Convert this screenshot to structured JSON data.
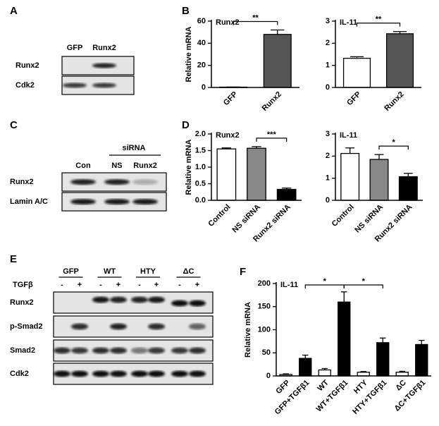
{
  "panel_labels": [
    "A",
    "B",
    "C",
    "D",
    "E",
    "F"
  ],
  "blots": [
    {
      "lanes": [
        "GFP",
        "Runx2"
      ],
      "rows": [
        "Runx2",
        "Cdk2"
      ]
    },
    {
      "header": "siRNA",
      "lanes": [
        "Con",
        "NS",
        "Runx2"
      ],
      "rows": [
        "Runx2",
        "Lamin A/C"
      ]
    },
    {
      "groups": [
        "GFP",
        "WT",
        "HTY",
        "ΔC"
      ],
      "treatment": "TGFβ",
      "signs": [
        "-",
        "+"
      ],
      "rows": [
        "Runx2",
        "p-Smad2",
        "Smad2",
        "Cdk2"
      ]
    }
  ],
  "chart_data": [
    {
      "type": "bar",
      "title": "Runx2",
      "y_label": "Relative mRNA",
      "categories": [
        "GFP",
        "Runx2"
      ],
      "values": [
        0.3,
        48
      ],
      "errors": [
        0.1,
        4
      ],
      "colors": [
        "#ffffff",
        "#555555"
      ],
      "ylim": [
        0,
        60
      ],
      "yticks": [
        0,
        20,
        40,
        60
      ],
      "annotations": [
        {
          "text": "**",
          "between": [
            "GFP",
            "Runx2"
          ]
        }
      ]
    },
    {
      "type": "bar",
      "title": "IL-11",
      "categories": [
        "GFP",
        "Runx2"
      ],
      "values": [
        1.32,
        2.43
      ],
      "errors": [
        0.07,
        0.1
      ],
      "colors": [
        "#ffffff",
        "#555555"
      ],
      "ylim": [
        0,
        3
      ],
      "yticks": [
        0,
        1,
        2,
        3
      ],
      "annotations": [
        {
          "text": "**",
          "between": [
            "GFP",
            "Runx2"
          ]
        }
      ]
    },
    {
      "type": "bar",
      "title": "Runx2",
      "y_label": "Relative mRNA",
      "categories": [
        "Control",
        "NS siRNA",
        "Runx2 siRNA"
      ],
      "values": [
        1.55,
        1.57,
        0.33
      ],
      "errors": [
        0.03,
        0.05,
        0.04
      ],
      "colors": [
        "#ffffff",
        "#888888",
        "#000000"
      ],
      "ylim": [
        0,
        2
      ],
      "yticks": [
        {
          "value": 0,
          "label": "0.0"
        },
        {
          "value": 0.5,
          "label": "0.5"
        },
        {
          "value": 1,
          "label": "1.0"
        },
        {
          "value": 1.5,
          "label": "1.5"
        },
        {
          "value": 2,
          "label": "2.0"
        }
      ],
      "annotations": [
        {
          "text": "***",
          "between": [
            "NS siRNA",
            "Runx2 siRNA"
          ]
        }
      ]
    },
    {
      "type": "bar",
      "title": "IL-11",
      "categories": [
        "Control",
        "NS siRNA",
        "Runx2  siRNA"
      ],
      "values": [
        2.12,
        1.85,
        1.07
      ],
      "errors": [
        0.25,
        0.22,
        0.15
      ],
      "colors": [
        "#ffffff",
        "#888888",
        "#000000"
      ],
      "ylim": [
        0,
        3
      ],
      "yticks": [
        0,
        1,
        2,
        3
      ],
      "annotations": [
        {
          "text": "*",
          "between": [
            "NS siRNA",
            "Runx2  siRNA"
          ]
        }
      ]
    },
    {
      "type": "bar",
      "title": "IL-11",
      "y_label": "Relative mRNA",
      "categories": [
        "GFP",
        "GFP+TGFβ1",
        "WT",
        "WT+TGFβ1",
        "HTY",
        "HTY+TGFβ1",
        "ΔC",
        "ΔC+TGFβ1"
      ],
      "values": [
        3,
        38,
        13,
        160,
        8,
        72,
        8,
        68
      ],
      "errors": [
        1.5,
        7,
        3,
        22,
        1.5,
        10,
        2,
        9
      ],
      "colors": [
        "#ffffff",
        "#000000",
        "#ffffff",
        "#000000",
        "#ffffff",
        "#000000",
        "#ffffff",
        "#000000"
      ],
      "ylim": [
        0,
        200
      ],
      "yticks": [
        0,
        50,
        100,
        150,
        200
      ],
      "annotations": [
        {
          "text": "*",
          "between": [
            "GFP+TGFβ1",
            "WT+TGFβ1"
          ]
        },
        {
          "text": "*",
          "between": [
            "WT+TGFβ1",
            "HTY+TGFβ1"
          ]
        }
      ]
    }
  ]
}
